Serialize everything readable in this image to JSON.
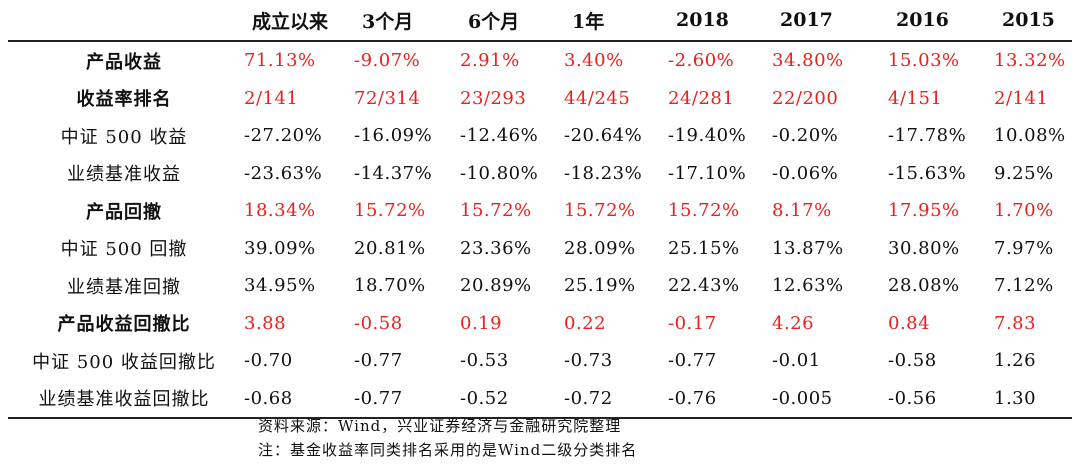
{
  "table": {
    "headers": [
      "",
      "成立以来",
      "3个月",
      "6个月",
      "1年",
      "2018",
      "2017",
      "2016",
      "2015"
    ],
    "rows": [
      {
        "label": "产品收益",
        "highlight": true,
        "values": [
          "71.13%",
          "-9.07%",
          "2.91%",
          "3.40%",
          "-2.60%",
          "34.80%",
          "15.03%",
          "13.32%"
        ]
      },
      {
        "label": "收益率排名",
        "highlight": true,
        "values": [
          "2/141",
          "72/314",
          "23/293",
          "44/245",
          "24/281",
          "22/200",
          "4/151",
          "2/141"
        ]
      },
      {
        "label": "中证 500 收益",
        "highlight": false,
        "values": [
          "-27.20%",
          "-16.09%",
          "-12.46%",
          "-20.64%",
          "-19.40%",
          "-0.20%",
          "-17.78%",
          "10.08%"
        ]
      },
      {
        "label": "业绩基准收益",
        "highlight": false,
        "values": [
          "-23.63%",
          "-14.37%",
          "-10.80%",
          "-18.23%",
          "-17.10%",
          "-0.06%",
          "-15.63%",
          "9.25%"
        ]
      },
      {
        "label": "产品回撤",
        "highlight": true,
        "values": [
          "18.34%",
          "15.72%",
          "15.72%",
          "15.72%",
          "15.72%",
          "8.17%",
          "17.95%",
          "1.70%"
        ]
      },
      {
        "label": "中证 500 回撤",
        "highlight": false,
        "values": [
          "39.09%",
          "20.81%",
          "23.36%",
          "28.09%",
          "25.15%",
          "13.87%",
          "30.80%",
          "7.97%"
        ]
      },
      {
        "label": "业绩基准回撤",
        "highlight": false,
        "values": [
          "34.95%",
          "18.70%",
          "20.89%",
          "25.19%",
          "22.43%",
          "12.63%",
          "28.08%",
          "7.12%"
        ]
      },
      {
        "label": "产品收益回撤比",
        "highlight": true,
        "values": [
          "3.88",
          "-0.58",
          "0.19",
          "0.22",
          "-0.17",
          "4.26",
          "0.84",
          "7.83"
        ]
      },
      {
        "label": "中证 500 收益回撤比",
        "highlight": false,
        "values": [
          "-0.70",
          "-0.77",
          "-0.53",
          "-0.73",
          "-0.77",
          "-0.01",
          "-0.58",
          "1.26"
        ]
      },
      {
        "label": "业绩基准收益回撤比",
        "highlight": false,
        "values": [
          "-0.68",
          "-0.77",
          "-0.52",
          "-0.72",
          "-0.76",
          "-0.005",
          "-0.56",
          "1.30"
        ]
      }
    ]
  },
  "notes": {
    "source": "资料来源：Wind，兴业证券经济与金融研究院整理",
    "remark": "注：基金收益率同类排名采用的是Wind二级分类排名"
  },
  "colors": {
    "highlight_value": "#e8211b",
    "text": "#111111",
    "rule": "#222222"
  }
}
